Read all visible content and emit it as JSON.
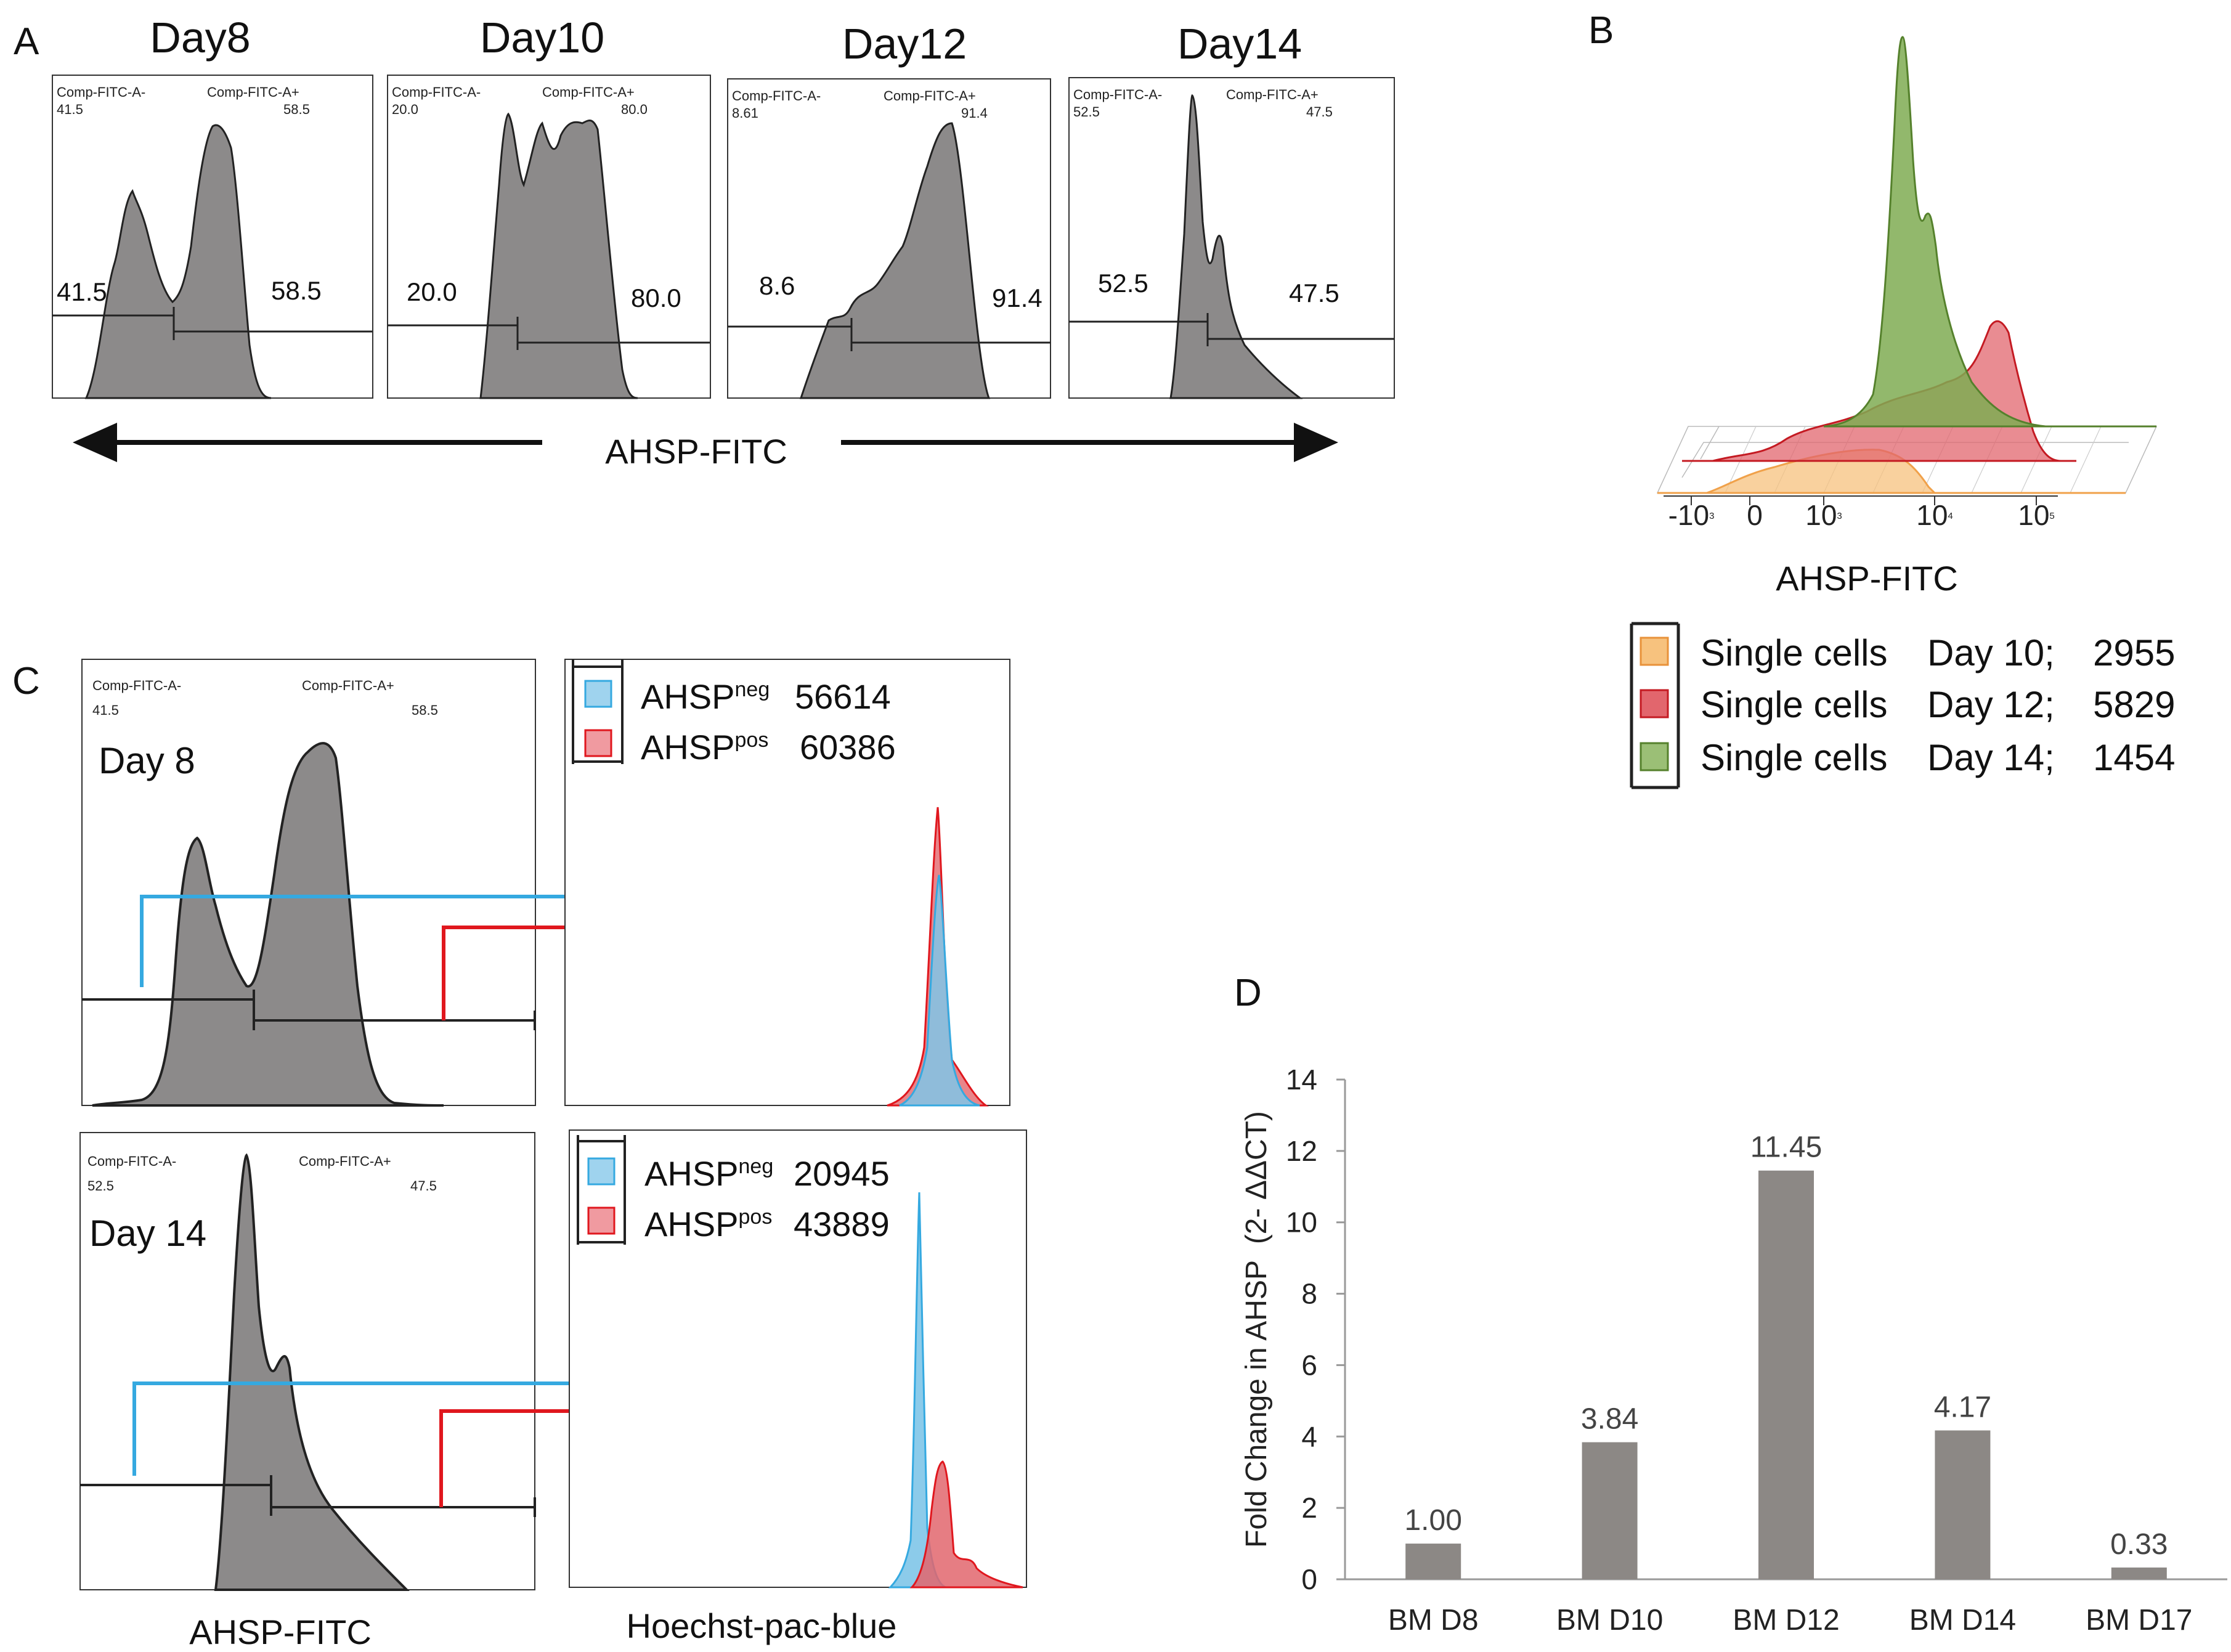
{
  "panels": {
    "a_label": "A",
    "b_label": "B",
    "c_label": "C",
    "d_label": "D"
  },
  "panel_a": {
    "arrow_label": "AHSP-FITC",
    "histograms": [
      {
        "day": "Day8",
        "neg_name": "Comp-FITC-A-",
        "pos_name": "Comp-FITC-A+",
        "neg_small": "41.5",
        "pos_small": "58.5",
        "neg_pct": "41.5",
        "pos_pct": "58.5"
      },
      {
        "day": "Day10",
        "neg_name": "Comp-FITC-A-",
        "pos_name": "Comp-FITC-A+",
        "neg_small": "20.0",
        "pos_small": "80.0",
        "neg_pct": "20.0",
        "pos_pct": "80.0"
      },
      {
        "day": "Day12",
        "neg_name": "Comp-FITC-A-",
        "pos_name": "Comp-FITC-A+",
        "neg_small": "8.61",
        "pos_small": "91.4",
        "neg_pct": "8.6",
        "pos_pct": "91.4"
      },
      {
        "day": "Day14",
        "neg_name": "Comp-FITC-A-",
        "pos_name": "Comp-FITC-A+",
        "neg_small": "52.5",
        "pos_small": "47.5",
        "neg_pct": "52.5",
        "pos_pct": "47.5"
      }
    ]
  },
  "panel_b": {
    "xlabel": "AHSP-FITC",
    "ticks": [
      "-10",
      "0",
      "10",
      "10",
      "10"
    ],
    "tick_exps": [
      "3",
      "",
      "3",
      "4",
      "5"
    ],
    "legend": [
      {
        "name": "Single cells",
        "day": "Day 10;",
        "count": "2955",
        "color": "#f7c27e"
      },
      {
        "name": "Single cells",
        "day": "Day 12;",
        "count": "5829",
        "color": "#d9474d"
      },
      {
        "name": "Single cells",
        "day": "Day 14;",
        "count": "1454",
        "color": "#6e9a46"
      }
    ]
  },
  "panel_c": {
    "xlabel_left": "AHSP-FITC",
    "xlabel_right": "Hoechst-pac-blue",
    "rows": [
      {
        "day": "Day 8",
        "neg_name": "Comp-FITC-A-",
        "pos_name": "Comp-FITC-A+",
        "neg_small": "41.5",
        "pos_small": "58.5",
        "legend": [
          {
            "base": "AHSP",
            "sup": "neg",
            "value": "56614"
          },
          {
            "base": "AHSP",
            "sup": "pos",
            "value": "60386"
          }
        ]
      },
      {
        "day": "Day 14",
        "neg_name": "Comp-FITC-A-",
        "pos_name": "Comp-FITC-A+",
        "neg_small": "52.5",
        "pos_small": "47.5",
        "legend": [
          {
            "base": "AHSP",
            "sup": "neg",
            "value": "20945"
          },
          {
            "base": "AHSP",
            "sup": "pos",
            "value": "43889"
          }
        ]
      }
    ]
  },
  "chart_data": {
    "type": "bar",
    "title": "",
    "ylabel": "Fold Change in AHSP  (2- ΔΔCT)",
    "xlabel": "",
    "categories": [
      "BM D8",
      "BM D10",
      "BM D12",
      "BM D14",
      "BM D17"
    ],
    "values": [
      1.0,
      3.84,
      11.45,
      4.17,
      0.33
    ],
    "value_labels": [
      "1.00",
      "3.84",
      "11.45",
      "4.17",
      "0.33"
    ],
    "ylim": [
      0,
      14
    ],
    "yticks": [
      "0",
      "2",
      "4",
      "6",
      "8",
      "10",
      "12",
      "14"
    ],
    "bar_color": "#8c8885"
  }
}
